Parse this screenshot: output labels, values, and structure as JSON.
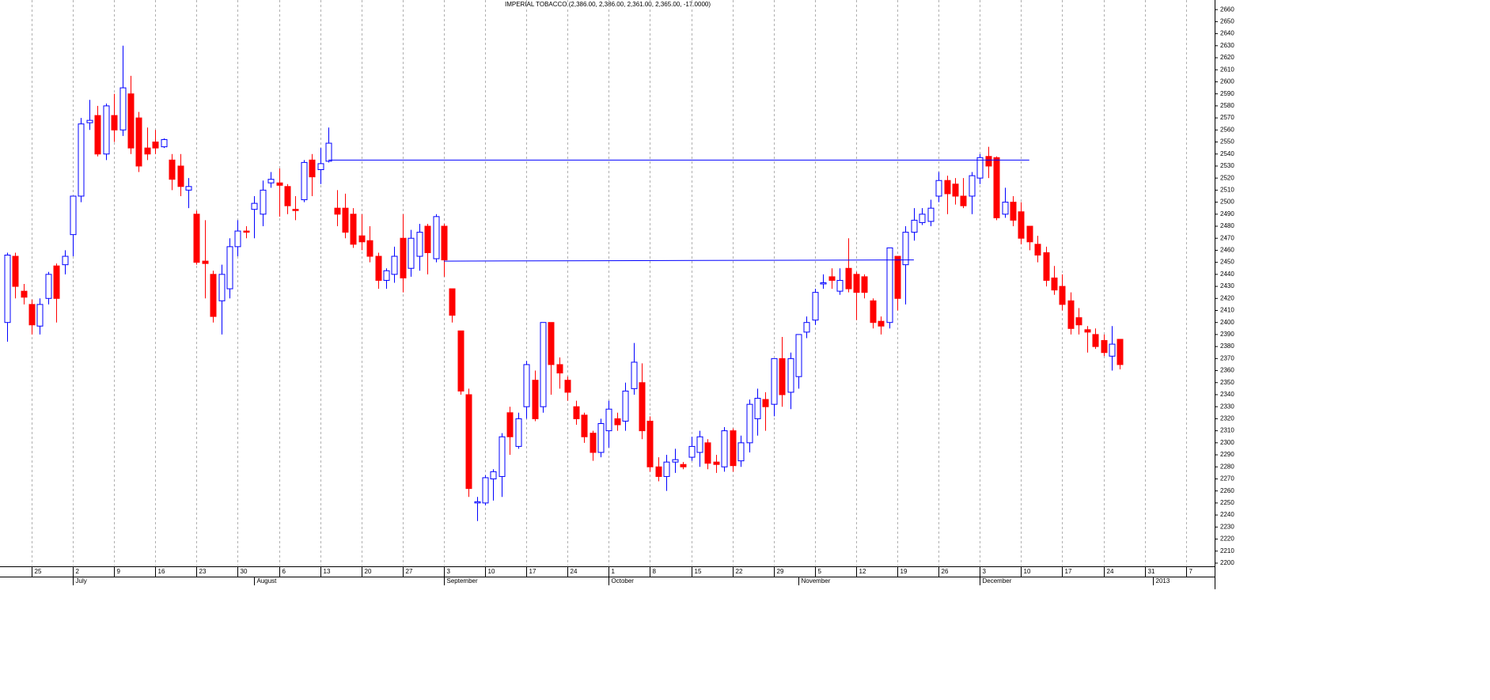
{
  "chart_data": {
    "type": "candlestick",
    "title": "IMPERIAL TOBACCO (2,386.00, 2,386.00, 2,361.00, 2,365.00, -17.0000)",
    "up_color": "#0000ff",
    "down_color": "#ff0000",
    "grid": true,
    "ylim": [
      2198,
      2668
    ],
    "yticks": [
      2200,
      2210,
      2220,
      2230,
      2240,
      2250,
      2260,
      2270,
      2280,
      2290,
      2300,
      2310,
      2320,
      2330,
      2340,
      2350,
      2360,
      2370,
      2380,
      2390,
      2400,
      2410,
      2420,
      2430,
      2440,
      2450,
      2460,
      2470,
      2480,
      2490,
      2500,
      2510,
      2520,
      2530,
      2540,
      2550,
      2560,
      2570,
      2580,
      2590,
      2600,
      2610,
      2620,
      2630,
      2640,
      2650,
      2660
    ],
    "categories": [
      null,
      null,
      null,
      "25",
      null,
      null,
      null,
      null,
      "2",
      null,
      null,
      null,
      null,
      "9",
      null,
      null,
      null,
      null,
      "16",
      null,
      null,
      null,
      null,
      "23",
      null,
      null,
      null,
      null,
      "30",
      null,
      null,
      null,
      null,
      "6",
      null,
      null,
      null,
      null,
      "13",
      null,
      null,
      null,
      null,
      "20",
      null,
      null,
      null,
      null,
      "27",
      null,
      null,
      null,
      null,
      "3",
      null,
      null,
      null,
      null,
      "10",
      null,
      null,
      null,
      null,
      "17",
      null,
      null,
      null,
      null,
      "24",
      null,
      null,
      null,
      null,
      "1",
      null,
      null,
      null,
      null,
      "8",
      null,
      null,
      null,
      null,
      "15",
      null,
      null,
      null,
      null,
      "22",
      null,
      null,
      null,
      null,
      "29",
      null,
      null,
      null,
      null,
      "5",
      null,
      null,
      null,
      null,
      "12",
      null,
      null,
      null,
      null,
      "19",
      null,
      null,
      null,
      null,
      "26",
      null,
      null,
      null,
      null,
      "3",
      null,
      null,
      null,
      null,
      "10",
      null,
      null,
      null,
      null,
      "17",
      null,
      null,
      null,
      null,
      "24",
      null,
      null,
      null,
      null,
      "31",
      null,
      null,
      null,
      null,
      "7",
      null,
      null,
      null
    ],
    "months": [
      null,
      null,
      null,
      null,
      null,
      null,
      null,
      null,
      "July",
      null,
      null,
      null,
      null,
      null,
      null,
      null,
      null,
      null,
      null,
      null,
      null,
      null,
      null,
      null,
      null,
      null,
      null,
      null,
      null,
      null,
      "August",
      null,
      null,
      null,
      null,
      null,
      null,
      null,
      null,
      null,
      null,
      null,
      null,
      null,
      null,
      null,
      null,
      null,
      null,
      null,
      null,
      null,
      null,
      "September",
      null,
      null,
      null,
      null,
      null,
      null,
      null,
      null,
      null,
      null,
      null,
      null,
      null,
      null,
      null,
      null,
      null,
      null,
      null,
      "October",
      null,
      null,
      null,
      null,
      null,
      null,
      null,
      null,
      null,
      null,
      null,
      null,
      null,
      null,
      null,
      null,
      null,
      null,
      null,
      null,
      null,
      null,
      "November",
      null,
      null,
      null,
      null,
      null,
      null,
      null,
      null,
      null,
      null,
      null,
      null,
      null,
      null,
      null,
      null,
      null,
      null,
      null,
      null,
      null,
      "December",
      null,
      null,
      null,
      null,
      null,
      null,
      null,
      null,
      null,
      null,
      null,
      null,
      null,
      null,
      null,
      null,
      null,
      null,
      null,
      null,
      "2013",
      null,
      null,
      null,
      null,
      null,
      null,
      null
    ],
    "open": [
      2400,
      2455,
      2426,
      2415,
      2397,
      2420,
      2447,
      2448,
      2473,
      2505,
      2566,
      2572,
      2540,
      2572,
      2560,
      2590,
      2570,
      2545,
      2550,
      2546,
      2535,
      2530,
      2510,
      2490,
      2451,
      2440,
      2418,
      2428,
      2463,
      2476,
      2494,
      2490,
      2516,
      2516,
      2513,
      2494,
      2502,
      2535,
      2527,
      2534,
      2495,
      2495,
      2490,
      2472,
      2468,
      2455,
      2435,
      2440,
      2470,
      2445,
      2455,
      2480,
      2453,
      2480,
      2428,
      2393,
      2340,
      2250,
      2250,
      2270,
      2272,
      2325,
      2297,
      2330,
      2352,
      2330,
      2400,
      2365,
      2352,
      2330,
      2323,
      2308,
      2292,
      2310,
      2320,
      2318,
      2345,
      2350,
      2318,
      2280,
      2272,
      2284,
      2282,
      2288,
      2292,
      2300,
      2284,
      2280,
      2310,
      2285,
      2300,
      2320,
      2336,
      2332,
      2370,
      2342,
      2355,
      2392,
      2402,
      2432,
      2438,
      2426,
      2445,
      2440,
      2438,
      2418,
      2401,
      2400,
      2455,
      2448,
      2475,
      2483,
      2484,
      2505,
      2518,
      2515,
      2505,
      2505,
      2520,
      2538,
      2537,
      2490,
      2500,
      2492,
      2480,
      2465,
      2458,
      2437,
      2430,
      2418,
      2404,
      2394,
      2390,
      2385,
      2372,
      2386,
      null,
      null,
      null,
      null,
      null,
      null,
      null,
      null,
      null,
      null,
      null
    ],
    "high": [
      2458,
      2458,
      2432,
      2419,
      2420,
      2442,
      2449,
      2460,
      2505,
      2570,
      2585,
      2580,
      2582,
      2590,
      2630,
      2605,
      2575,
      2562,
      2560,
      2553,
      2540,
      2540,
      2520,
      2493,
      2485,
      2443,
      2448,
      2470,
      2485,
      2480,
      2505,
      2518,
      2525,
      2528,
      2515,
      2505,
      2535,
      2540,
      2545,
      2562,
      2510,
      2507,
      2495,
      2490,
      2480,
      2458,
      2445,
      2463,
      2490,
      2477,
      2482,
      2482,
      2490,
      2482,
      2428,
      2393,
      2345,
      2255,
      2273,
      2278,
      2308,
      2330,
      2325,
      2368,
      2360,
      2400,
      2400,
      2371,
      2355,
      2335,
      2325,
      2310,
      2320,
      2335,
      2325,
      2350,
      2383,
      2366,
      2322,
      2288,
      2290,
      2295,
      2284,
      2305,
      2310,
      2303,
      2290,
      2313,
      2312,
      2306,
      2336,
      2345,
      2342,
      2370,
      2388,
      2375,
      2390,
      2405,
      2428,
      2440,
      2445,
      2445,
      2470,
      2442,
      2440,
      2420,
      2405,
      2462,
      2455,
      2480,
      2495,
      2495,
      2502,
      2525,
      2522,
      2520,
      2520,
      2525,
      2540,
      2546,
      2538,
      2512,
      2505,
      2500,
      2480,
      2472,
      2463,
      2447,
      2440,
      2425,
      2412,
      2397,
      2395,
      2390,
      2397,
      2386,
      null,
      null,
      null,
      null,
      null,
      null,
      null,
      null,
      null,
      null,
      null
    ],
    "low": [
      2384,
      2420,
      2415,
      2390,
      2390,
      2415,
      2400,
      2440,
      2455,
      2500,
      2560,
      2538,
      2535,
      2550,
      2555,
      2540,
      2525,
      2535,
      2540,
      2545,
      2510,
      2505,
      2495,
      2448,
      2420,
      2400,
      2390,
      2420,
      2455,
      2470,
      2470,
      2480,
      2512,
      2488,
      2490,
      2485,
      2500,
      2505,
      2515,
      2533,
      2480,
      2470,
      2462,
      2460,
      2450,
      2428,
      2428,
      2433,
      2425,
      2438,
      2443,
      2440,
      2450,
      2438,
      2400,
      2340,
      2255,
      2235,
      2248,
      2252,
      2255,
      2290,
      2295,
      2320,
      2318,
      2325,
      2340,
      2345,
      2335,
      2315,
      2300,
      2285,
      2288,
      2296,
      2310,
      2310,
      2340,
      2303,
      2276,
      2268,
      2260,
      2275,
      2278,
      2285,
      2280,
      2278,
      2275,
      2276,
      2276,
      2280,
      2292,
      2306,
      2310,
      2322,
      2330,
      2328,
      2345,
      2387,
      2398,
      2428,
      2428,
      2423,
      2425,
      2402,
      2420,
      2395,
      2390,
      2395,
      2410,
      2415,
      2468,
      2481,
      2480,
      2500,
      2490,
      2498,
      2495,
      2490,
      2515,
      2520,
      2485,
      2487,
      2480,
      2465,
      2460,
      2450,
      2430,
      2423,
      2410,
      2390,
      2390,
      2375,
      2378,
      2372,
      2360,
      2361,
      null,
      null,
      null,
      null,
      null,
      null,
      null,
      null,
      null,
      null,
      null
    ],
    "close": [
      2456,
      2430,
      2421,
      2398,
      2415,
      2440,
      2420,
      2455,
      2505,
      2565,
      2568,
      2540,
      2580,
      2560,
      2595,
      2545,
      2530,
      2540,
      2545,
      2552,
      2519,
      2513,
      2513,
      2450,
      2449,
      2405,
      2440,
      2463,
      2476,
      2475,
      2499,
      2510,
      2519,
      2514,
      2497,
      2493,
      2533,
      2521,
      2532,
      2549,
      2490,
      2475,
      2465,
      2467,
      2455,
      2435,
      2443,
      2455,
      2437,
      2470,
      2475,
      2458,
      2488,
      2452,
      2406,
      2343,
      2262,
      2251,
      2271,
      2276,
      2305,
      2305,
      2320,
      2365,
      2320,
      2400,
      2365,
      2358,
      2342,
      2320,
      2305,
      2292,
      2316,
      2328,
      2315,
      2343,
      2367,
      2310,
      2280,
      2272,
      2284,
      2286,
      2280,
      2297,
      2305,
      2283,
      2282,
      2310,
      2281,
      2300,
      2332,
      2337,
      2330,
      2370,
      2340,
      2370,
      2390,
      2400,
      2425,
      2433,
      2435,
      2435,
      2428,
      2425,
      2425,
      2400,
      2397,
      2462,
      2420,
      2475,
      2485,
      2490,
      2495,
      2518,
      2507,
      2505,
      2497,
      2522,
      2537,
      2530,
      2487,
      2500,
      2485,
      2470,
      2467,
      2456,
      2435,
      2427,
      2415,
      2395,
      2398,
      2392,
      2380,
      2375,
      2382,
      2365,
      null,
      null,
      null,
      null,
      null,
      null,
      null,
      null,
      null,
      null,
      null
    ],
    "lines": [
      {
        "color": "#0000ff",
        "x": [
          39,
          124
        ],
        "values": [
          2535,
          2535
        ]
      },
      {
        "color": "#0000ff",
        "x": [
          53,
          110
        ],
        "values": [
          2451,
          2452
        ]
      }
    ]
  }
}
